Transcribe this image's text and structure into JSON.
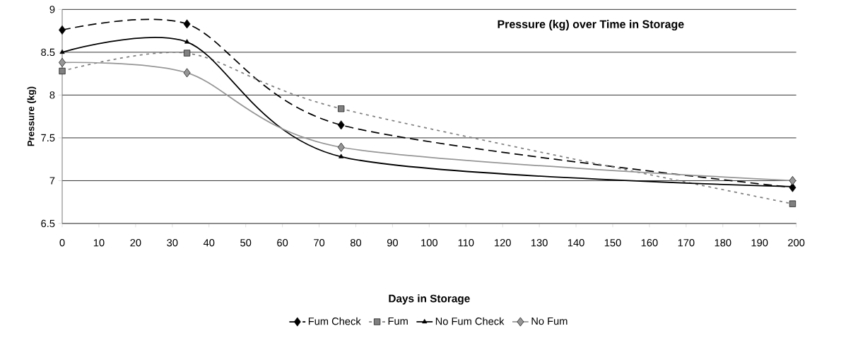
{
  "chart_data": {
    "type": "line",
    "title": "Pressure (kg) over Time in Storage",
    "xlabel": "Days in Storage",
    "ylabel": "Pressure (kg)",
    "x": [
      0,
      34,
      76,
      199
    ],
    "series": [
      {
        "name": "Fum Check",
        "color": "#000000",
        "values": [
          8.76,
          8.83,
          7.65,
          6.92
        ],
        "marker": "diamond",
        "line_style": "dashed"
      },
      {
        "name": "Fum",
        "color": "#808080",
        "values": [
          8.28,
          8.49,
          7.84,
          6.73
        ],
        "marker": "square",
        "line_style": "dotted"
      },
      {
        "name": "No Fum Check",
        "color": "#000000",
        "values": [
          8.5,
          8.62,
          7.28,
          6.93
        ],
        "marker": "triangle",
        "line_style": "solid"
      },
      {
        "name": "No Fum",
        "color": "#969696",
        "values": [
          8.38,
          8.26,
          7.39,
          7.0
        ],
        "marker": "diamond",
        "line_style": "solid"
      }
    ],
    "xlim": [
      0,
      200
    ],
    "ylim": [
      6.5,
      9
    ],
    "xticks": [
      0,
      10,
      20,
      30,
      40,
      50,
      60,
      70,
      80,
      90,
      100,
      110,
      120,
      130,
      140,
      150,
      160,
      170,
      180,
      190,
      200
    ],
    "yticks": [
      6.5,
      7,
      7.5,
      8,
      8.5,
      9
    ],
    "grid": "y",
    "legend": "bottom"
  }
}
